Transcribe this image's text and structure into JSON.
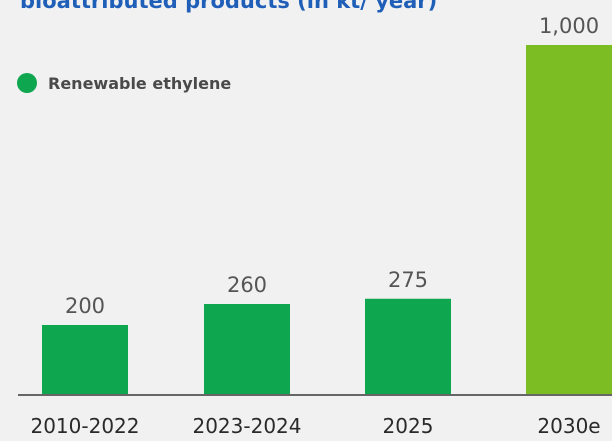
{
  "chart_data": {
    "type": "bar",
    "title": "bioattributed products (in kt/ year)",
    "categories": [
      "2010-2022",
      "2023-2024",
      "2025",
      "2030e"
    ],
    "values": [
      200,
      260,
      275,
      1000
    ],
    "value_labels": [
      "200",
      "260",
      "275",
      "1,000"
    ],
    "legend": {
      "entries": [
        "Renewable ethylene"
      ],
      "placement": "top-left"
    },
    "ylim": [
      0,
      1000
    ],
    "grid": false,
    "colors": {
      "bar": "#0ea64f",
      "bar_highlight": "#7bbd22",
      "title": "#1f5fb8",
      "axis": "#666666"
    }
  }
}
